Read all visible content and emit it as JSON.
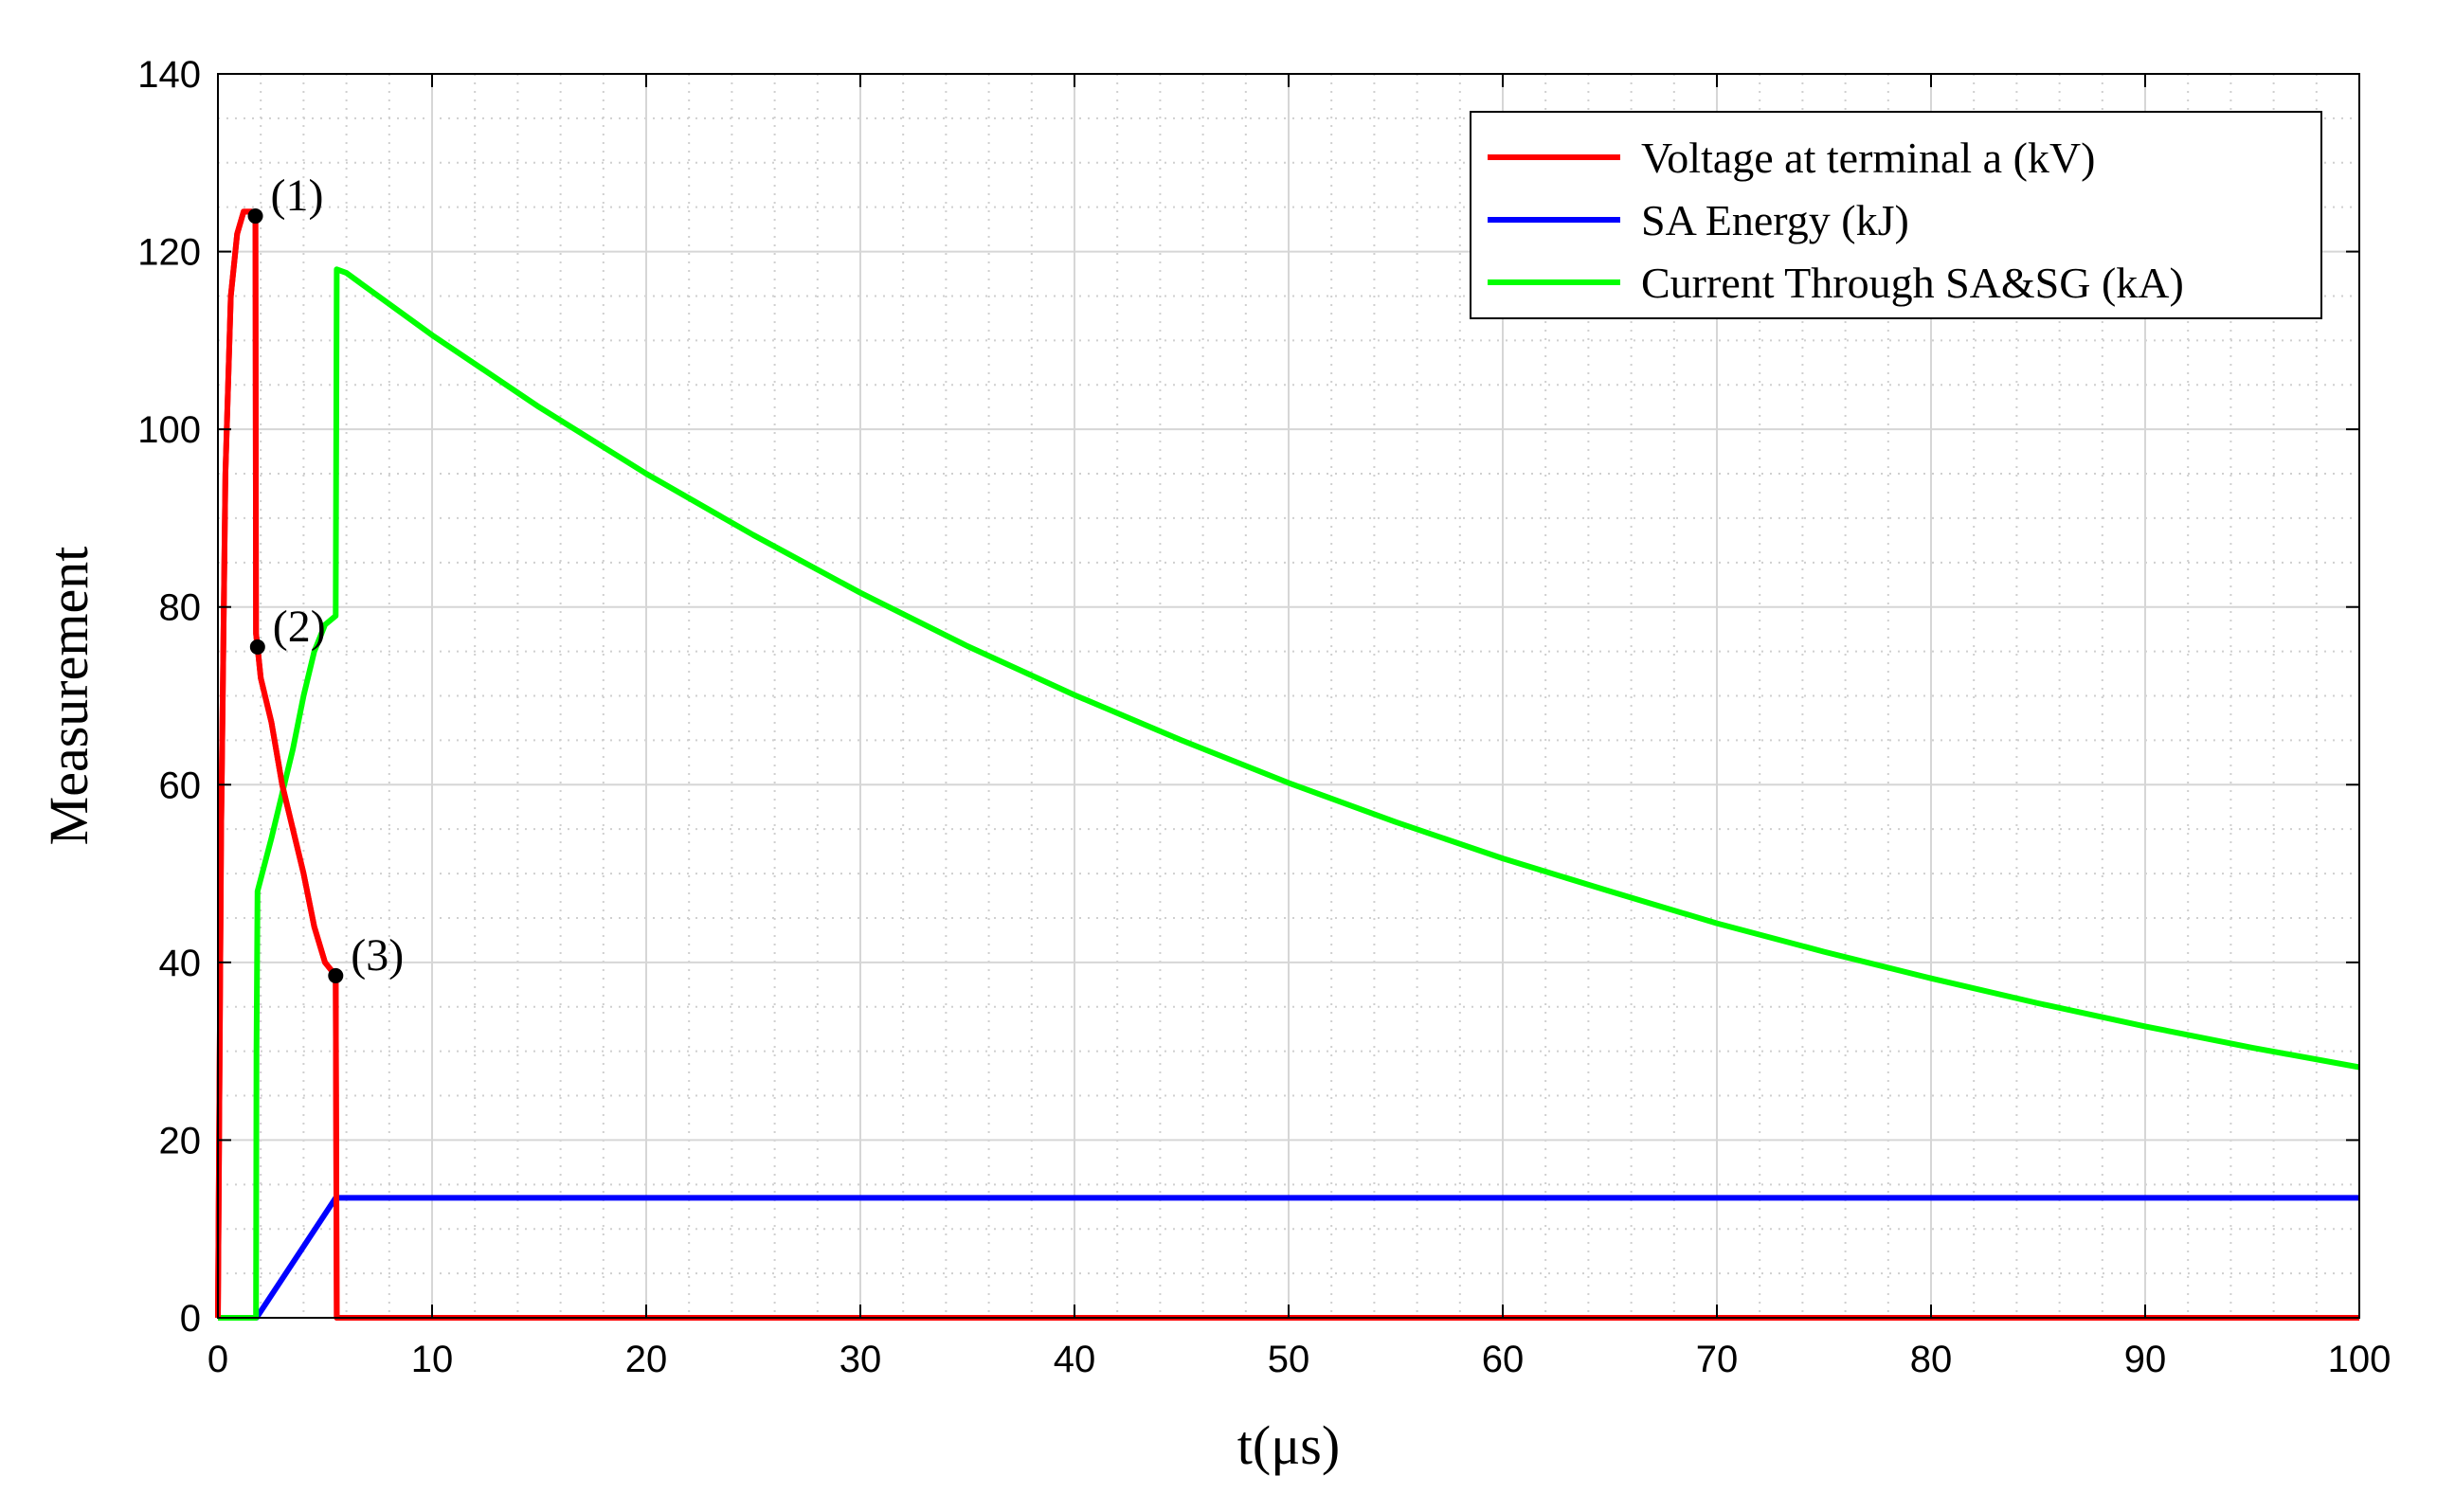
{
  "chart_data": {
    "type": "line",
    "xlabel": "t(μs)",
    "ylabel": "Measurement",
    "xlim": [
      0,
      100
    ],
    "ylim": [
      0,
      140
    ],
    "xticks": [
      0,
      10,
      20,
      30,
      40,
      50,
      60,
      70,
      80,
      90,
      100
    ],
    "yticks": [
      0,
      20,
      40,
      60,
      80,
      100,
      120,
      140
    ],
    "grid": true,
    "minor_grid": true,
    "legend_position": "top-right",
    "series": [
      {
        "name": "Voltage at terminal a (kV)",
        "color": "#ff0000",
        "x": [
          0,
          0.15,
          0.35,
          0.6,
          0.9,
          1.2,
          1.6,
          1.75,
          1.78,
          1.85,
          2.0,
          2.5,
          3.0,
          3.5,
          4.0,
          4.5,
          5.0,
          5.5,
          5.55,
          6,
          100
        ],
        "y": [
          0,
          55,
          95,
          115,
          122,
          124.5,
          124.5,
          124,
          77,
          75.5,
          72,
          67,
          60,
          55,
          50,
          44,
          40,
          38.5,
          0,
          0,
          0
        ]
      },
      {
        "name": "SA Energy (kJ)",
        "color": "#0000ff",
        "x": [
          0,
          1.8,
          5.5,
          100
        ],
        "y": [
          0,
          0,
          13.5,
          13.5
        ]
      },
      {
        "name": "Current Through SA&SG (kA)",
        "color": "#00ff00",
        "x": [
          0,
          1.78,
          1.8,
          1.85,
          2.5,
          3.0,
          3.5,
          4.0,
          4.5,
          5.0,
          5.5,
          5.55,
          6,
          10,
          15,
          20,
          25,
          30,
          35,
          40,
          45,
          50,
          55,
          60,
          65,
          70,
          75,
          80,
          85,
          90,
          95,
          100
        ],
        "y": [
          0,
          0,
          30,
          48,
          54,
          59,
          64,
          70,
          75,
          78,
          79,
          118,
          117.6,
          110.6,
          102.5,
          95.0,
          88.1,
          81.6,
          75.6,
          70.1,
          65.0,
          60.2,
          55.8,
          51.7,
          48.0,
          44.4,
          41.2,
          38.2,
          35.4,
          32.8,
          30.4,
          28.2
        ]
      }
    ],
    "markers": [
      {
        "label": "(1)",
        "x": 1.75,
        "y": 124
      },
      {
        "label": "(2)",
        "x": 1.85,
        "y": 75.5
      },
      {
        "label": "(3)",
        "x": 5.5,
        "y": 38.5
      }
    ]
  }
}
